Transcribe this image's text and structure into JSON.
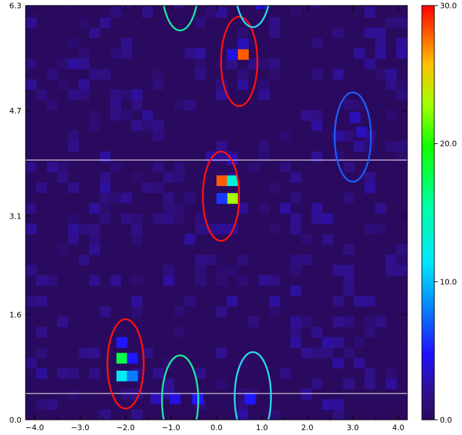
{
  "chart_data": {
    "type": "heatmap",
    "title": "",
    "xlabel": "",
    "ylabel": "",
    "xlim": [
      -4.2,
      4.2
    ],
    "ylim": [
      0.0,
      6.3
    ],
    "x_ticks": [
      -4.0,
      -3.0,
      -2.0,
      -1.0,
      0.0,
      1.0,
      2.0,
      3.0,
      4.0
    ],
    "x_tick_labels": [
      "−4.0",
      "−3.0",
      "−2.0",
      "−1.0",
      "0.0",
      "1.0",
      "2.0",
      "3.0",
      "4.0"
    ],
    "y_ticks": [
      0.0,
      1.6,
      3.1,
      4.7,
      6.3
    ],
    "y_tick_labels": [
      "0.0",
      "1.6",
      "3.1",
      "4.7",
      "6.3"
    ],
    "colorbar": {
      "range": [
        0.0,
        30.0
      ],
      "ticks": [
        0.0,
        10.0,
        20.0,
        30.0
      ],
      "tick_labels": [
        "0.0",
        "10.0",
        "20.0",
        "30.0"
      ],
      "colormap": "rainbow (dark violet → blue → cyan → green → yellow → red)"
    },
    "background_color": "#2a0a5e",
    "bins": {
      "x_bin_width": 0.233,
      "y_bin_width": 0.157
    },
    "bright_cells": [
      {
        "x": 0.47,
        "y": 5.48,
        "value": 28
      },
      {
        "x": 0.23,
        "y": 5.48,
        "value": 4
      },
      {
        "x": 0.47,
        "y": 5.64,
        "value": 3
      },
      {
        "x": 0.0,
        "y": 3.56,
        "value": 28
      },
      {
        "x": 0.23,
        "y": 3.56,
        "value": 13
      },
      {
        "x": 0.23,
        "y": 3.29,
        "value": 23
      },
      {
        "x": 0.0,
        "y": 3.29,
        "value": 6
      },
      {
        "x": 0.23,
        "y": 3.88,
        "value": 3
      },
      {
        "x": -2.2,
        "y": 0.86,
        "value": 18
      },
      {
        "x": -2.2,
        "y": 0.59,
        "value": 12
      },
      {
        "x": -1.97,
        "y": 0.59,
        "value": 8
      },
      {
        "x": -1.97,
        "y": 0.86,
        "value": 5
      },
      {
        "x": -2.2,
        "y": 1.1,
        "value": 5
      },
      {
        "x": -0.53,
        "y": 0.24,
        "value": 5
      },
      {
        "x": -1.03,
        "y": 0.24,
        "value": 4
      },
      {
        "x": 0.62,
        "y": 0.24,
        "value": 5
      },
      {
        "x": 0.85,
        "y": 6.25,
        "value": 4
      },
      {
        "x": 2.93,
        "y": 4.52,
        "value": 3
      },
      {
        "x": 3.07,
        "y": 4.3,
        "value": 3
      },
      {
        "x": -1.45,
        "y": 0.24,
        "value": 3
      }
    ],
    "horizontal_lines": [
      0.4,
      3.95
    ],
    "ellipses": [
      {
        "cx": 0.5,
        "cy": 5.45,
        "rx": 0.7,
        "ry": 0.7,
        "color": "#ff1010"
      },
      {
        "cx": 0.1,
        "cy": 3.4,
        "rx": 0.7,
        "ry": 0.7,
        "color": "#ff1010"
      },
      {
        "cx": -2.0,
        "cy": 0.85,
        "rx": 0.7,
        "ry": 0.7,
        "color": "#ff1010"
      },
      {
        "cx": 3.0,
        "cy": 4.3,
        "rx": 0.7,
        "ry": 0.7,
        "color": "#1a5cff"
      },
      {
        "cx": -0.8,
        "cy": 0.3,
        "rx": 0.7,
        "ry": 0.7,
        "color": "#20e8a0"
      },
      {
        "cx": -0.8,
        "cy": 6.6,
        "rx": 0.7,
        "ry": 0.7,
        "color": "#20e8a0"
      },
      {
        "cx": 0.8,
        "cy": 0.35,
        "rx": 0.7,
        "ry": 0.7,
        "color": "#28d8f0"
      },
      {
        "cx": 0.8,
        "cy": 6.65,
        "rx": 0.7,
        "ry": 0.7,
        "color": "#28d8f0"
      }
    ]
  }
}
